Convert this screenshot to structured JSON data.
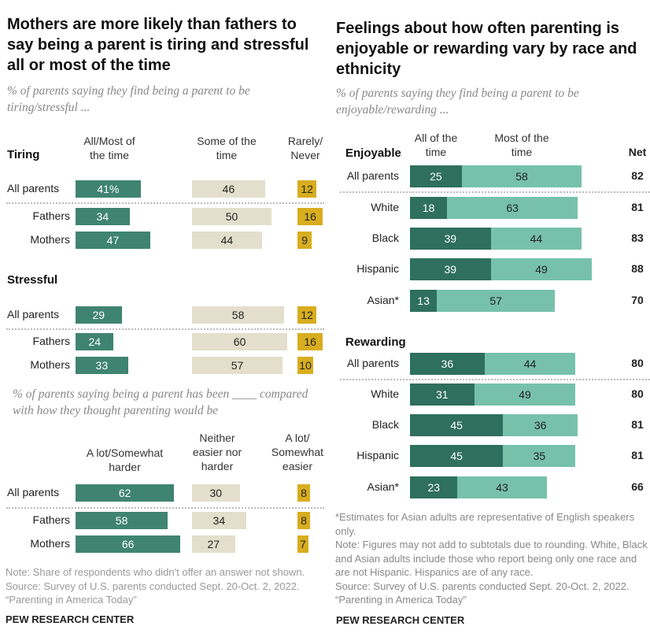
{
  "colors": {
    "left_dark": "#3f8471",
    "left_mid": "#e3dfcc",
    "left_gold": "#d8ad1f",
    "right_dark": "#2e6f5d",
    "right_light": "#77c1ab"
  },
  "chart_data": [
    {
      "type": "bar",
      "title": "Mothers are more likely than fathers to say being a parent is tiring and stressful all or most of the time",
      "subtitle": "% of parents saying they find being a parent to be tiring/stressful ...",
      "columns": [
        "All/Most of the time",
        "Some of the time",
        "Rarely/ Never"
      ],
      "groups": [
        {
          "name": "Tiring",
          "rows": [
            {
              "label": "All parents",
              "values": [
                41,
                46,
                12
              ],
              "display": [
                "41%",
                "46",
                "12"
              ]
            },
            {
              "label": "Fathers",
              "values": [
                34,
                50,
                16
              ],
              "display": [
                "34",
                "50",
                "16"
              ]
            },
            {
              "label": "Mothers",
              "values": [
                47,
                44,
                9
              ],
              "display": [
                "47",
                "44",
                "9"
              ]
            }
          ]
        },
        {
          "name": "Stressful",
          "rows": [
            {
              "label": "All parents",
              "values": [
                29,
                58,
                12
              ],
              "display": [
                "29",
                "58",
                "12"
              ]
            },
            {
              "label": "Fathers",
              "values": [
                24,
                60,
                16
              ],
              "display": [
                "24",
                "60",
                "16"
              ]
            },
            {
              "label": "Mothers",
              "values": [
                33,
                57,
                10
              ],
              "display": [
                "33",
                "57",
                "10"
              ]
            }
          ]
        }
      ],
      "subtitle2": "% of parents saying being a parent has been ____ compared with how they thought parenting would be",
      "columns2": [
        "A lot/Somewhat harder",
        "Neither easier nor harder",
        "A lot/ Somewhat easier"
      ],
      "rows2": [
        {
          "label": "All parents",
          "values": [
            62,
            30,
            8
          ],
          "display": [
            "62",
            "30",
            "8"
          ]
        },
        {
          "label": "Fathers",
          "values": [
            58,
            34,
            8
          ],
          "display": [
            "58",
            "34",
            "8"
          ]
        },
        {
          "label": "Mothers",
          "values": [
            66,
            27,
            7
          ],
          "display": [
            "66",
            "27",
            "7"
          ]
        }
      ],
      "notes": [
        "Note: Share of respondents who didn't offer an answer not shown.",
        "Source: Survey of U.S. parents conducted Sept. 20-Oct. 2, 2022.",
        "“Parenting in America Today”"
      ],
      "credit": "PEW RESEARCH CENTER"
    },
    {
      "type": "bar",
      "stacked": true,
      "title": "Feelings about how often parenting is enjoyable or rewarding vary by race and ethnicity",
      "subtitle": "% of parents saying they find being a parent to be enjoyable/rewarding ...",
      "columns": [
        "All of the time",
        "Most of the time",
        "Net"
      ],
      "groups": [
        {
          "name": "Enjoyable",
          "rows": [
            {
              "label": "All parents",
              "values": [
                25,
                58
              ],
              "net": 82
            },
            {
              "label": "White",
              "values": [
                18,
                63
              ],
              "net": 81
            },
            {
              "label": "Black",
              "values": [
                39,
                44
              ],
              "net": 83
            },
            {
              "label": "Hispanic",
              "values": [
                39,
                49
              ],
              "net": 88
            },
            {
              "label": "Asian*",
              "values": [
                13,
                57
              ],
              "net": 70
            }
          ]
        },
        {
          "name": "Rewarding",
          "rows": [
            {
              "label": "All parents",
              "values": [
                36,
                44
              ],
              "net": 80
            },
            {
              "label": "White",
              "values": [
                31,
                49
              ],
              "net": 80
            },
            {
              "label": "Black",
              "values": [
                45,
                36
              ],
              "net": 81
            },
            {
              "label": "Hispanic",
              "values": [
                45,
                35
              ],
              "net": 81
            },
            {
              "label": "Asian*",
              "values": [
                23,
                43
              ],
              "net": 66
            }
          ]
        }
      ],
      "notes": [
        "*Estimates for Asian adults are representative of English speakers only.",
        "Note: Figures may not add to subtotals due to rounding. White, Black and Asian adults include those who report being only one race and are not Hispanic. Hispanics are of any race.",
        "Source: Survey of U.S. parents conducted Sept. 20-Oct. 2, 2022.",
        "“Parenting in America Today”"
      ],
      "credit": "PEW RESEARCH CENTER"
    }
  ]
}
